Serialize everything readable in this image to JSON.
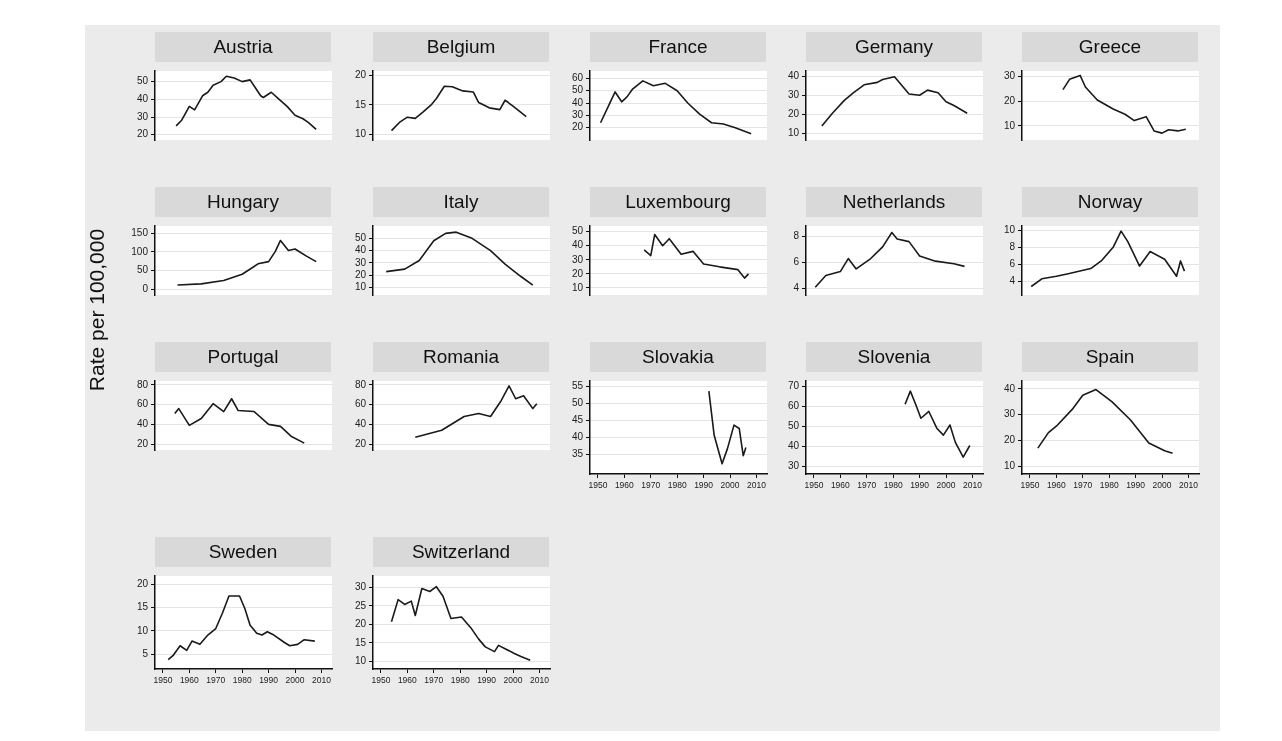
{
  "chart_data": [
    {
      "type": "line",
      "title": "Austria",
      "color": "#1a1a1a",
      "x": [
        1955,
        1957,
        1960,
        1962,
        1965,
        1967,
        1969,
        1972,
        1974,
        1977,
        1980,
        1983,
        1987,
        1988,
        1991,
        1994,
        1997,
        2000,
        2003,
        2005,
        2008
      ],
      "values": [
        25,
        28,
        36,
        34,
        42,
        44,
        48,
        50,
        53,
        52,
        50,
        51,
        42,
        41,
        44,
        40,
        36,
        31,
        29,
        27,
        23
      ],
      "xlim": [
        1947,
        2014
      ],
      "ylim": [
        17,
        56
      ],
      "yticks": [
        20,
        30,
        40,
        50
      ],
      "grid": "y",
      "tick_labels": "y"
    },
    {
      "type": "line",
      "title": "Belgium",
      "color": "#1a1a1a",
      "x": [
        1954,
        1957,
        1960,
        1963,
        1966,
        1969,
        1971,
        1974,
        1977,
        1981,
        1985,
        1987,
        1991,
        1995,
        1997,
        2000,
        2005
      ],
      "values": [
        10.6,
        12,
        12.9,
        12.7,
        13.8,
        15,
        16.1,
        18.2,
        18.1,
        17.4,
        17.2,
        15.4,
        14.5,
        14.2,
        15.8,
        14.8,
        13
      ],
      "xlim": [
        1947,
        2014
      ],
      "ylim": [
        9,
        20.8
      ],
      "yticks": [
        10,
        15,
        20
      ],
      "grid": "y",
      "tick_labels": "y"
    },
    {
      "type": "line",
      "title": "France",
      "color": "#1a1a1a",
      "x": [
        1951,
        1954.5,
        1956.5,
        1959,
        1961,
        1963,
        1967,
        1971,
        1975.5,
        1980,
        1984,
        1988.5,
        1993,
        1997.5,
        2002,
        2008
      ],
      "values": [
        24,
        40,
        49,
        41,
        45,
        51,
        58,
        54,
        56,
        50,
        40,
        31,
        24,
        23,
        20,
        15
      ],
      "xlim": [
        1947,
        2014
      ],
      "ylim": [
        10,
        66
      ],
      "yticks": [
        20,
        30,
        40,
        50,
        60
      ],
      "grid": "y",
      "tick_labels": "y"
    },
    {
      "type": "line",
      "title": "Germany",
      "color": "#1a1a1a",
      "x": [
        1953,
        1957,
        1961.5,
        1965,
        1969,
        1974,
        1976,
        1980.5,
        1986,
        1990,
        1993,
        1997,
        2000,
        2003,
        2008
      ],
      "values": [
        14,
        20.7,
        27.5,
        31.6,
        35.7,
        37,
        38.5,
        40,
        30.9,
        30.2,
        32.9,
        31.5,
        26.8,
        24.8,
        20.7
      ],
      "xlim": [
        1947,
        2014
      ],
      "ylim": [
        6.6,
        43
      ],
      "yticks": [
        10,
        20,
        30,
        40
      ],
      "grid": "y",
      "tick_labels": "y"
    },
    {
      "type": "line",
      "title": "Greece",
      "color": "#1a1a1a",
      "x": [
        1962.5,
        1965,
        1969,
        1971,
        1975.5,
        1981.5,
        1986,
        1989.5,
        1994,
        1997,
        2000,
        2002.5,
        2006,
        2009
      ],
      "values": [
        24.7,
        28.9,
        30.5,
        25.8,
        20.5,
        16.8,
        14.7,
        12.1,
        13.7,
        7.9,
        7,
        8.4,
        7.9,
        8.6
      ],
      "xlim": [
        1947,
        2014
      ],
      "ylim": [
        4.2,
        32.3
      ],
      "yticks": [
        10,
        20,
        30
      ],
      "grid": "y",
      "tick_labels": "y"
    },
    {
      "type": "line",
      "title": "Hungary",
      "ylabel": "Rate per 100,000",
      "color": "#1a1a1a",
      "x": [
        1955.5,
        1964.5,
        1973,
        1980,
        1986,
        1990,
        1992.5,
        1994.5,
        1997.5,
        2000,
        2004.5,
        2008
      ],
      "values": [
        11,
        14,
        23,
        40,
        68,
        74,
        101,
        131,
        104,
        108,
        88,
        74
      ],
      "xlim": [
        1947,
        2014
      ],
      "ylim": [
        -16,
        170
      ],
      "yticks": [
        0,
        50,
        100,
        150
      ],
      "grid": "y",
      "tick_labels": "y"
    },
    {
      "type": "line",
      "title": "Italy",
      "color": "#1a1a1a",
      "x": [
        1952,
        1959,
        1964.5,
        1970,
        1974.5,
        1978.5,
        1984.5,
        1991.5,
        1997,
        2003,
        2007.5
      ],
      "values": [
        23,
        25,
        32,
        48,
        54,
        55,
        50,
        40,
        29,
        19,
        12
      ],
      "xlim": [
        1947,
        2014
      ],
      "ylim": [
        4,
        60
      ],
      "yticks": [
        10,
        20,
        30,
        40,
        50
      ],
      "grid": "y",
      "tick_labels": "y"
    },
    {
      "type": "line",
      "title": "Luxembourg",
      "color": "#1a1a1a",
      "x": [
        1967.5,
        1970,
        1971.5,
        1974.5,
        1977,
        1981.5,
        1986,
        1990,
        1996,
        2003,
        2005.5,
        2007
      ],
      "values": [
        37,
        33,
        48,
        40,
        45,
        34,
        36,
        27,
        25,
        23,
        17,
        20
      ],
      "xlim": [
        1947,
        2014
      ],
      "ylim": [
        5,
        54
      ],
      "yticks": [
        10,
        20,
        30,
        40,
        50
      ],
      "grid": "y",
      "tick_labels": "y"
    },
    {
      "type": "line",
      "title": "Netherlands",
      "color": "#1a1a1a",
      "x": [
        1950.5,
        1954.5,
        1960,
        1963,
        1966,
        1971.5,
        1976,
        1979.5,
        1981.5,
        1986,
        1990,
        1996,
        2003,
        2007
      ],
      "values": [
        4.1,
        5,
        5.3,
        6.3,
        5.5,
        6.3,
        7.2,
        8.3,
        7.8,
        7.6,
        6.5,
        6.1,
        5.9,
        5.7
      ],
      "xlim": [
        1947,
        2014
      ],
      "ylim": [
        3.5,
        8.8
      ],
      "yticks": [
        4,
        6,
        8
      ],
      "grid": "y",
      "tick_labels": "y"
    },
    {
      "type": "line",
      "title": "Norway",
      "color": "#1a1a1a",
      "x": [
        1950.5,
        1954.5,
        1960,
        1964.5,
        1973,
        1977,
        1981.5,
        1984.5,
        1987,
        1991.5,
        1995.5,
        2001,
        2005.5,
        2007,
        2008.5
      ],
      "values": [
        3.4,
        4.3,
        4.6,
        4.9,
        5.5,
        6.4,
        8,
        9.9,
        8.7,
        5.8,
        7.5,
        6.6,
        4.6,
        6.4,
        5.2
      ],
      "xlim": [
        1947,
        2014
      ],
      "ylim": [
        2.4,
        10.5
      ],
      "yticks": [
        4,
        6,
        8,
        10
      ],
      "grid": "y",
      "tick_labels": "y"
    },
    {
      "type": "line",
      "title": "Portugal",
      "color": "#1a1a1a",
      "x": [
        1954.5,
        1956,
        1960,
        1964.5,
        1969,
        1973,
        1976,
        1978.5,
        1984.5,
        1990,
        1994.5,
        1998.5,
        2003.5
      ],
      "values": [
        51,
        56,
        39,
        46,
        61,
        53,
        66,
        54,
        53,
        40,
        38,
        28,
        21
      ],
      "xlim": [
        1947,
        2014
      ],
      "ylim": [
        14,
        84
      ],
      "yticks": [
        20,
        40,
        60,
        80
      ],
      "grid": "y",
      "tick_labels": "y"
    },
    {
      "type": "line",
      "title": "Romania",
      "color": "#1a1a1a",
      "x": [
        1963,
        1973,
        1981.5,
        1987,
        1991.5,
        1995.5,
        1998.5,
        2001,
        2004,
        2007.5,
        2009
      ],
      "values": [
        27,
        34,
        48,
        51,
        48,
        64,
        79,
        66,
        69,
        56,
        61
      ],
      "xlim": [
        1947,
        2014
      ],
      "ylim": [
        14,
        84
      ],
      "yticks": [
        20,
        40,
        60,
        80
      ],
      "grid": "y",
      "tick_labels": "y"
    },
    {
      "type": "line",
      "title": "Slovakia",
      "color": "#1a1a1a",
      "x": [
        1992,
        1994,
        1997,
        1999,
        2001.5,
        2003.5,
        2005,
        2006
      ],
      "values": [
        53.6,
        40.6,
        32.2,
        36.6,
        43.6,
        42.6,
        34.6,
        37
      ],
      "xlim": [
        1947,
        2014
      ],
      "xticks": [
        1950,
        1960,
        1970,
        1980,
        1990,
        2000,
        2010
      ],
      "ylim": [
        29.2,
        56.6
      ],
      "yticks": [
        35,
        40,
        45,
        50,
        55
      ],
      "grid": "y"
    },
    {
      "type": "line",
      "title": "Slovenia",
      "color": "#1a1a1a",
      "x": [
        1984.5,
        1986.5,
        1988.5,
        1990.5,
        1993.5,
        1996.5,
        1999,
        2001.5,
        2003.5,
        2006.5,
        2009
      ],
      "values": [
        61,
        67.6,
        61,
        54,
        57.4,
        49,
        45.5,
        50.6,
        42,
        34.5,
        40.3
      ],
      "xlim": [
        1947,
        2014
      ],
      "xticks": [
        1950,
        1960,
        1970,
        1980,
        1990,
        2000,
        2010
      ],
      "ylim": [
        26,
        72.7
      ],
      "yticks": [
        30,
        40,
        50,
        60,
        70
      ],
      "grid": "y"
    },
    {
      "type": "line",
      "title": "Spain",
      "color": "#1a1a1a",
      "x": [
        1953,
        1957,
        1960,
        1966,
        1970,
        1975,
        1981,
        1988,
        1995,
        2001,
        2004
      ],
      "values": [
        17,
        23,
        25.5,
        32,
        37.5,
        39.7,
        35,
        28,
        19,
        16,
        15
      ],
      "xlim": [
        1947,
        2014
      ],
      "xticks": [
        1950,
        1960,
        1970,
        1980,
        1990,
        2000,
        2010
      ],
      "ylim": [
        7,
        43
      ],
      "yticks": [
        10,
        20,
        30,
        40
      ],
      "grid": "y"
    },
    {
      "type": "line",
      "title": "Sweden",
      "color": "#1a1a1a",
      "x": [
        1952,
        1954,
        1956.5,
        1959,
        1961,
        1964,
        1967,
        1970,
        1972.5,
        1975,
        1979,
        1981,
        1983,
        1985.5,
        1987.5,
        1989.5,
        1992,
        1996,
        1998,
        2001,
        2003.5,
        2007.5
      ],
      "values": [
        3.8,
        4.8,
        6.8,
        5.8,
        7.8,
        7.1,
        9.1,
        10.5,
        13.8,
        17.5,
        17.5,
        14.8,
        11.2,
        9.5,
        9.1,
        9.8,
        9.1,
        7.5,
        6.8,
        7.1,
        8.1,
        7.8
      ],
      "xlim": [
        1947,
        2014
      ],
      "xticks": [
        1950,
        1960,
        1970,
        1980,
        1990,
        2000,
        2010
      ],
      "ylim": [
        1.8,
        21.8
      ],
      "yticks": [
        5,
        10,
        15,
        20
      ],
      "grid": "y"
    },
    {
      "type": "line",
      "title": "Switzerland",
      "color": "#1a1a1a",
      "x": [
        1954,
        1956.5,
        1959,
        1961.5,
        1963,
        1965.5,
        1968.5,
        1971,
        1973.5,
        1976.5,
        1980.5,
        1984,
        1987,
        1989.5,
        1993,
        1994.5,
        1997,
        2000.5,
        2003,
        2006.5
      ],
      "values": [
        20.7,
        26.7,
        25.4,
        26.3,
        22.4,
        29.7,
        28.9,
        30.2,
        27.6,
        21.6,
        22,
        19.1,
        16,
        13.9,
        12.6,
        14.3,
        13.4,
        12.1,
        11.3,
        10.3
      ],
      "xlim": [
        1947,
        2014
      ],
      "xticks": [
        1950,
        1960,
        1970,
        1980,
        1990,
        2000,
        2010
      ],
      "ylim": [
        7.9,
        33.1
      ],
      "yticks": [
        10,
        15,
        20,
        25,
        30
      ],
      "grid": "y"
    }
  ]
}
